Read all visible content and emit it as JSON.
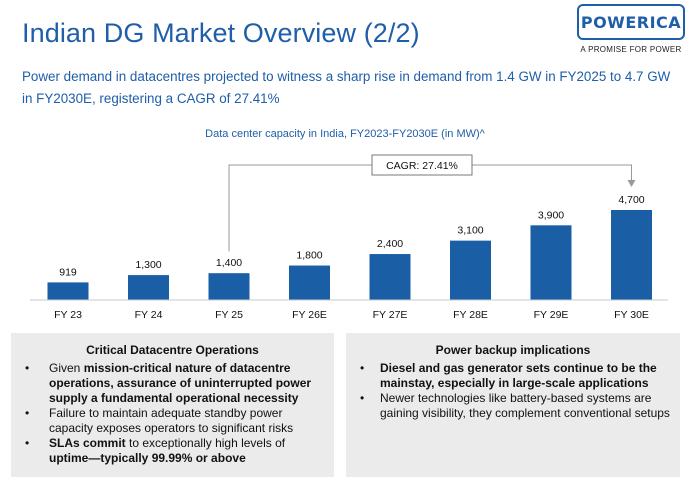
{
  "header": {
    "title": "Indian DG Market Overview (2/2)",
    "subtitle": "Power demand in datacentres projected to witness a sharp rise in demand from 1.4 GW in FY2025 to 4.7 GW in FY2030E, registering a CAGR of 27.41%"
  },
  "logo": {
    "word": "POWERICA",
    "tagline": "A PROMISE FOR POWER"
  },
  "chart_data": {
    "type": "bar",
    "title": "Data center capacity in India, FY2023-FY2030E (in MW)^",
    "categories": [
      "FY 23",
      "FY 24",
      "FY 25",
      "FY 26E",
      "FY 27E",
      "FY 28E",
      "FY 29E",
      "FY 30E"
    ],
    "values": [
      919,
      1300,
      1400,
      1800,
      2400,
      3100,
      3900,
      4700
    ],
    "value_labels": [
      "919",
      "1,300",
      "1,400",
      "1,800",
      "2,400",
      "3,100",
      "3,900",
      "4,700"
    ],
    "xlabel": "",
    "ylabel": "",
    "ylim": [
      0,
      4700
    ],
    "grid": false,
    "bar_color": "#1a5ea6",
    "annotation": {
      "label": "CAGR: 27.41%",
      "from": "FY 25",
      "to": "FY 30E"
    }
  },
  "panels": {
    "left": {
      "title": "Critical Datacentre Operations",
      "bullets": [
        {
          "pre": "Given ",
          "bold": "mission-critical nature of datacentre operations, assurance of uninterrupted power supply a fundamental operational necessity",
          "post": ""
        },
        {
          "pre": "Failure to maintain adequate standby power capacity exposes operators to significant risks",
          "bold": "",
          "post": ""
        },
        {
          "pre": "",
          "bold": "SLAs commit",
          "post": " to exceptionally high levels of "
        },
        {
          "pre": "",
          "bold": "uptime—typically 99.99% or above",
          "post": ""
        }
      ]
    },
    "right": {
      "title": "Power backup implications",
      "bullets": [
        {
          "pre": "",
          "bold": "Diesel and gas generator sets continue to be the mainstay, especially in large-scale applications",
          "post": ""
        },
        {
          "pre": "Newer technologies like battery-based systems are gaining visibility, they complement conventional setups",
          "bold": "",
          "post": ""
        }
      ]
    }
  }
}
